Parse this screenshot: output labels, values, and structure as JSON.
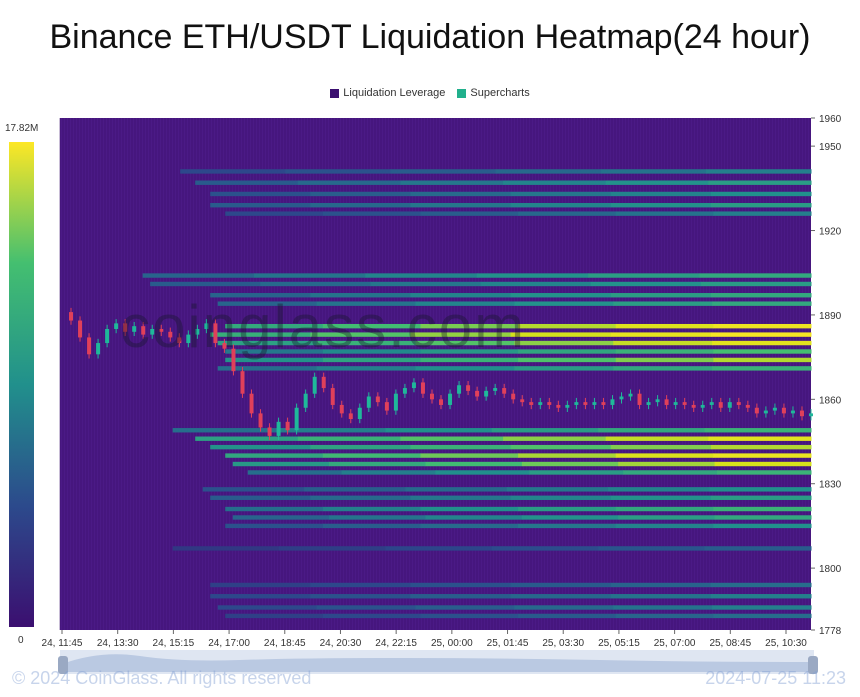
{
  "title": "Binance ETH/USDT Liquidation Heatmap(24 hour)",
  "legend": [
    {
      "label": "Liquidation Leverage",
      "color": "#3b0f70"
    },
    {
      "label": "Supercharts",
      "color": "#21b08c"
    }
  ],
  "colorbar": {
    "max_label": "17.82M",
    "min_label": "0",
    "max": 17.82,
    "min": 0
  },
  "watermark": "coinglass.com",
  "footer": {
    "copyright": "© 2024 CoinGlass. All rights reserved",
    "timestamp": "2024-07-25 11:23"
  },
  "chart_data": {
    "type": "heatmap",
    "title": "Binance ETH/USDT Liquidation Heatmap(24 hour)",
    "x_tick_labels": [
      "24, 11:45",
      "24, 13:30",
      "24, 15:15",
      "24, 17:00",
      "24, 18:45",
      "24, 20:30",
      "24, 22:15",
      "25, 00:00",
      "25, 01:45",
      "25, 03:30",
      "25, 05:15",
      "25, 07:00",
      "25, 08:45",
      "25, 10:30"
    ],
    "y_ticks": [
      1778,
      1800,
      1830,
      1860,
      1890,
      1920,
      1950,
      1960
    ],
    "ylim": [
      1778,
      1960
    ],
    "colorscale": [
      "#3b0f70",
      "#2c4a8c",
      "#21908c",
      "#44bf70",
      "#d7e21b",
      "#fde725"
    ],
    "liquidation_bands": [
      {
        "price": 1941,
        "start": 0.16,
        "intensity": 0.35
      },
      {
        "price": 1937,
        "start": 0.18,
        "intensity": 0.45
      },
      {
        "price": 1933,
        "start": 0.2,
        "intensity": 0.4
      },
      {
        "price": 1929,
        "start": 0.2,
        "intensity": 0.45
      },
      {
        "price": 1926,
        "start": 0.22,
        "intensity": 0.35
      },
      {
        "price": 1904,
        "start": 0.11,
        "intensity": 0.5
      },
      {
        "price": 1901,
        "start": 0.12,
        "intensity": 0.45
      },
      {
        "price": 1897,
        "start": 0.2,
        "intensity": 0.5
      },
      {
        "price": 1894,
        "start": 0.21,
        "intensity": 0.5
      },
      {
        "price": 1886,
        "start": 0.22,
        "intensity": 0.92
      },
      {
        "price": 1883,
        "start": 0.2,
        "intensity": 0.97
      },
      {
        "price": 1880,
        "start": 0.21,
        "intensity": 0.85
      },
      {
        "price": 1877,
        "start": 0.22,
        "intensity": 0.6
      },
      {
        "price": 1874,
        "start": 0.22,
        "intensity": 0.75
      },
      {
        "price": 1871,
        "start": 0.21,
        "intensity": 0.55
      },
      {
        "price": 1849,
        "start": 0.15,
        "intensity": 0.55
      },
      {
        "price": 1846,
        "start": 0.18,
        "intensity": 0.85
      },
      {
        "price": 1843,
        "start": 0.2,
        "intensity": 0.75
      },
      {
        "price": 1840,
        "start": 0.22,
        "intensity": 0.9
      },
      {
        "price": 1837,
        "start": 0.23,
        "intensity": 0.8
      },
      {
        "price": 1834,
        "start": 0.25,
        "intensity": 0.55
      },
      {
        "price": 1828,
        "start": 0.19,
        "intensity": 0.4
      },
      {
        "price": 1825,
        "start": 0.2,
        "intensity": 0.45
      },
      {
        "price": 1821,
        "start": 0.22,
        "intensity": 0.55
      },
      {
        "price": 1818,
        "start": 0.23,
        "intensity": 0.5
      },
      {
        "price": 1815,
        "start": 0.22,
        "intensity": 0.4
      },
      {
        "price": 1807,
        "start": 0.15,
        "intensity": 0.25
      },
      {
        "price": 1794,
        "start": 0.2,
        "intensity": 0.3
      },
      {
        "price": 1790,
        "start": 0.2,
        "intensity": 0.35
      },
      {
        "price": 1786,
        "start": 0.21,
        "intensity": 0.35
      },
      {
        "price": 1783,
        "start": 0.22,
        "intensity": 0.3
      }
    ],
    "price_series": [
      1891,
      1888,
      1882,
      1876,
      1880,
      1885,
      1887,
      1884,
      1886,
      1883,
      1885,
      1884,
      1882,
      1880,
      1883,
      1885,
      1887,
      1880,
      1878,
      1870,
      1862,
      1855,
      1850,
      1847,
      1852,
      1849,
      1857,
      1862,
      1868,
      1864,
      1858,
      1855,
      1853,
      1857,
      1861,
      1859,
      1856,
      1862,
      1864,
      1866,
      1862,
      1860,
      1858,
      1862,
      1865,
      1863,
      1861,
      1863,
      1864,
      1862,
      1860,
      1859,
      1858,
      1859,
      1858,
      1857,
      1858,
      1859,
      1858,
      1859,
      1858,
      1860,
      1861,
      1862,
      1858,
      1859,
      1860,
      1858,
      1859,
      1858,
      1857,
      1858,
      1859,
      1857,
      1859,
      1858,
      1857,
      1855,
      1856,
      1857,
      1855,
      1856,
      1854,
      1855
    ]
  }
}
